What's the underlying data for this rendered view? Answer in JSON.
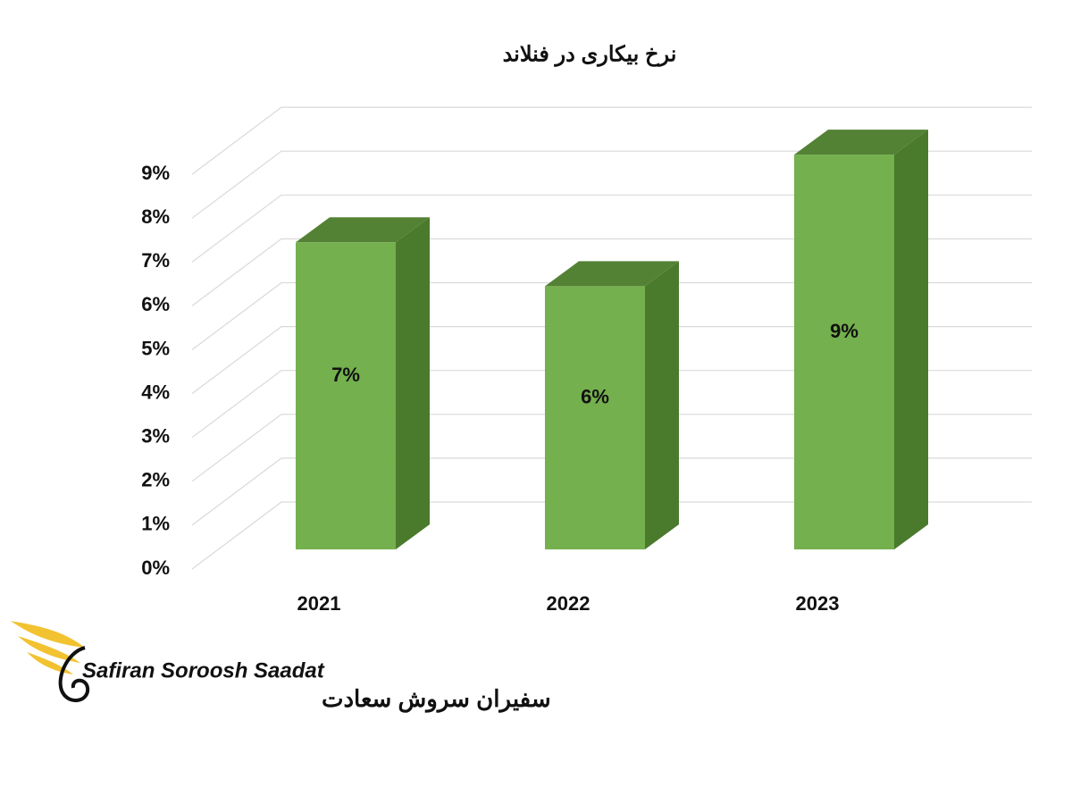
{
  "chart_data": {
    "type": "bar3d",
    "title": "نرخ بیکاری در فنلاند",
    "categories": [
      "2021",
      "2022",
      "2023"
    ],
    "values": [
      7,
      6,
      9
    ],
    "value_labels": [
      "7%",
      "6%",
      "9%"
    ],
    "color": "#70ad47",
    "ylim": [
      0,
      9
    ],
    "yticks": [
      {
        "value": 0,
        "label": "0%"
      },
      {
        "value": 1,
        "label": "1%"
      },
      {
        "value": 2,
        "label": "2%"
      },
      {
        "value": 3,
        "label": "3%"
      },
      {
        "value": 4,
        "label": "4%"
      },
      {
        "value": 5,
        "label": "5%"
      },
      {
        "value": 6,
        "label": "6%"
      },
      {
        "value": 7,
        "label": "7%"
      },
      {
        "value": 8,
        "label": "8%"
      },
      {
        "value": 9,
        "label": "9%"
      }
    ],
    "grid": true
  },
  "logo": {
    "name": "Safiran Soroosh Saadat",
    "name_fa": "سفیران سروش سعادت"
  }
}
